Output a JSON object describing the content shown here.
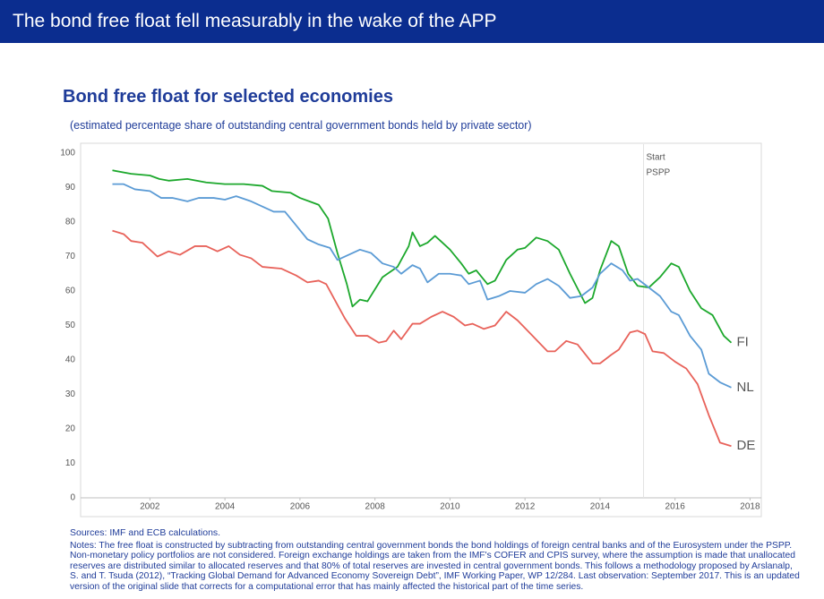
{
  "header": {
    "title": "The bond free float fell measurably in the wake of the APP"
  },
  "chart_data": {
    "type": "line",
    "title": "Bond free float for selected economies",
    "subtitle": "(estimated percentage share of outstanding central government bonds held by private sector)",
    "xlim": [
      2000.2,
      2018.3
    ],
    "xticks": [
      2002,
      2004,
      2006,
      2008,
      2010,
      2012,
      2014,
      2016,
      2018
    ],
    "ylim": [
      0,
      100
    ],
    "yticks": [
      0,
      10,
      20,
      30,
      40,
      50,
      60,
      70,
      80,
      90,
      100
    ],
    "annotations": [
      {
        "lines": [
          "Start",
          "PSPP"
        ],
        "x": 2015.16
      }
    ],
    "series": [
      {
        "name": "FI",
        "color": "#1ca82c",
        "x": [
          2001,
          2001.5,
          2002,
          2002.25,
          2002.5,
          2003,
          2003.5,
          2004,
          2004.5,
          2005,
          2005.25,
          2005.75,
          2006,
          2006.25,
          2006.5,
          2006.75,
          2007,
          2007.25,
          2007.4,
          2007.6,
          2007.8,
          2008.2,
          2008.6,
          2008.9,
          2009,
          2009.2,
          2009.4,
          2009.6,
          2009.8,
          2010,
          2010.3,
          2010.5,
          2010.7,
          2011,
          2011.2,
          2011.5,
          2011.8,
          2012,
          2012.3,
          2012.6,
          2012.9,
          2013.2,
          2013.6,
          2013.8,
          2014,
          2014.3,
          2014.5,
          2014.75,
          2015,
          2015.3,
          2015.6,
          2015.9,
          2016.1,
          2016.4,
          2016.7,
          2017,
          2017.3,
          2017.5
        ],
        "values": [
          95,
          94,
          93.5,
          92.5,
          92,
          92.5,
          91.5,
          91,
          91,
          90.5,
          89,
          88.5,
          87,
          86,
          85,
          81,
          71,
          62,
          55.5,
          57.5,
          57,
          64,
          67,
          73,
          77,
          73,
          74,
          76,
          74,
          72,
          68,
          65,
          66,
          62,
          63,
          69,
          72,
          72.5,
          75.5,
          74.5,
          72,
          65,
          56.5,
          58,
          66,
          74.5,
          73,
          65,
          61.5,
          61,
          64,
          68,
          67,
          60,
          55,
          53,
          47,
          45
        ]
      },
      {
        "name": "NL",
        "color": "#5b9bd5",
        "x": [
          2001,
          2001.3,
          2001.6,
          2002,
          2002.3,
          2002.6,
          2003,
          2003.3,
          2003.7,
          2004,
          2004.3,
          2004.7,
          2005,
          2005.3,
          2005.6,
          2005.9,
          2006.2,
          2006.5,
          2006.8,
          2007,
          2007.3,
          2007.6,
          2007.9,
          2008.2,
          2008.5,
          2008.7,
          2009,
          2009.2,
          2009.4,
          2009.7,
          2010,
          2010.3,
          2010.5,
          2010.8,
          2011,
          2011.3,
          2011.6,
          2012,
          2012.3,
          2012.6,
          2012.9,
          2013.2,
          2013.5,
          2013.8,
          2014,
          2014.3,
          2014.6,
          2014.8,
          2015,
          2015.3,
          2015.6,
          2015.9,
          2016.1,
          2016.4,
          2016.7,
          2016.9,
          2017.2,
          2017.5
        ],
        "values": [
          91,
          91,
          89.5,
          89,
          87,
          87,
          86,
          87,
          87,
          86.5,
          87.5,
          86,
          84.5,
          83,
          83,
          79,
          75,
          73.5,
          72.5,
          69,
          70.5,
          72,
          71,
          68,
          67,
          65,
          67.5,
          66.5,
          62.5,
          65,
          65,
          64.5,
          62,
          63,
          57.5,
          58.5,
          60,
          59.5,
          62,
          63.5,
          61.5,
          58,
          58.5,
          61,
          65,
          68,
          66,
          63,
          63.5,
          61,
          58.5,
          54,
          53,
          47,
          43,
          36,
          33.5,
          32
        ]
      },
      {
        "name": "DE",
        "color": "#e8625a",
        "x": [
          2001,
          2001.3,
          2001.5,
          2001.8,
          2002.2,
          2002.5,
          2002.8,
          2003.2,
          2003.5,
          2003.8,
          2004.1,
          2004.4,
          2004.7,
          2005,
          2005.5,
          2005.9,
          2006.2,
          2006.5,
          2006.7,
          2007,
          2007.2,
          2007.5,
          2007.8,
          2008.1,
          2008.3,
          2008.5,
          2008.7,
          2009,
          2009.2,
          2009.5,
          2009.8,
          2010.1,
          2010.4,
          2010.6,
          2010.9,
          2011.2,
          2011.5,
          2011.8,
          2012.2,
          2012.6,
          2012.8,
          2013.1,
          2013.4,
          2013.8,
          2014,
          2014.3,
          2014.5,
          2014.8,
          2015,
          2015.2,
          2015.4,
          2015.7,
          2016,
          2016.3,
          2016.6,
          2016.9,
          2017.2,
          2017.5
        ],
        "values": [
          77.5,
          76.5,
          74.5,
          74,
          70,
          71.5,
          70.5,
          73,
          73,
          71.5,
          73,
          70.5,
          69.5,
          67,
          66.5,
          64.5,
          62.5,
          63,
          62,
          56,
          52,
          47,
          47,
          45,
          45.5,
          48.5,
          46,
          50.5,
          50.5,
          52.5,
          54,
          52.5,
          50,
          50.5,
          49,
          50,
          54,
          51.5,
          47,
          42.5,
          42.5,
          45.5,
          44.5,
          39,
          39,
          41.5,
          43,
          48,
          48.5,
          47.5,
          42.5,
          42,
          39.5,
          37.5,
          33,
          24,
          16,
          15
        ]
      }
    ]
  },
  "sources": "Sources: IMF and ECB calculations.",
  "notes": "Notes: The free float is constructed by subtracting from outstanding central government bonds the bond holdings of foreign central banks and of the Eurosystem under the PSPP. Non-monetary policy portfolios are not considered. Foreign exchange holdings are taken from the IMF's COFER and CPIS survey, where the assumption is made that unallocated reserves are distributed similar to allocated reserves and that 80% of total reserves are invested in central government bonds. This follows a methodology proposed by Arslanalp, S. and T. Tsuda (2012), “Tracking Global Demand for Advanced Economy Sovereign Debt”, IMF Working Paper, WP 12/284. Last observation: September 2017. This is an updated version of the original slide that corrects for a computational error that has mainly affected the historical part of the time series."
}
